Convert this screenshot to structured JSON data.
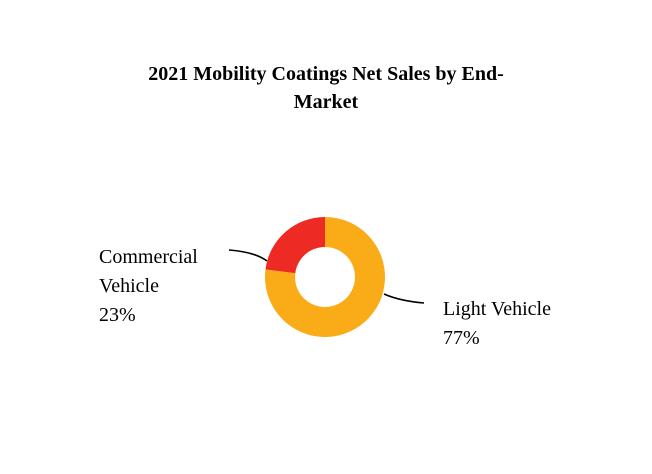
{
  "chart_data": {
    "type": "pie",
    "variant": "donut",
    "title": "2021 Mobility Coatings Net Sales by End-Market",
    "title_lines": [
      "2021 Mobility Coatings Net Sales by End-",
      "Market"
    ],
    "slices": [
      {
        "name": "Commercial Vehicle",
        "name_lines": [
          "Commercial",
          "Vehicle"
        ],
        "value": 23,
        "value_label": "23%",
        "color": "#EE2A24"
      },
      {
        "name": "Light Vehicle",
        "name_lines": [
          "Light Vehicle"
        ],
        "value": 77,
        "value_label": "77%",
        "color": "#FAAC18"
      }
    ],
    "units": "%"
  }
}
